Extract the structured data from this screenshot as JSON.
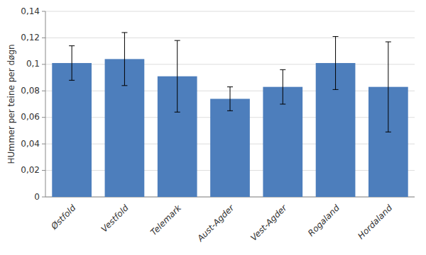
{
  "chart_data": {
    "type": "bar",
    "ylabel": "HUmmer per teine per døgn",
    "categories": [
      "Østfold",
      "Vestfold",
      "Telemark",
      "Aust-Agder",
      "Vest-Agder",
      "Rogaland",
      "Hordaland"
    ],
    "values": [
      0.101,
      0.104,
      0.091,
      0.074,
      0.083,
      0.101,
      0.083
    ],
    "errors": [
      0.013,
      0.02,
      0.027,
      0.009,
      0.013,
      0.02,
      0.034
    ],
    "color": "#4D7EBC",
    "ylim": [
      0,
      0.14
    ],
    "yticks": [
      0,
      {
        "value": 0.02,
        "label": "0,02"
      },
      {
        "value": 0.04,
        "label": "0,04"
      },
      {
        "value": 0.06,
        "label": "0,06"
      },
      {
        "value": 0.08,
        "label": "0,08"
      },
      {
        "value": 0.1,
        "label": "0,1"
      },
      {
        "value": 0.12,
        "label": "0,12"
      },
      {
        "value": 0.14,
        "label": "0,14"
      }
    ],
    "grid": true
  }
}
